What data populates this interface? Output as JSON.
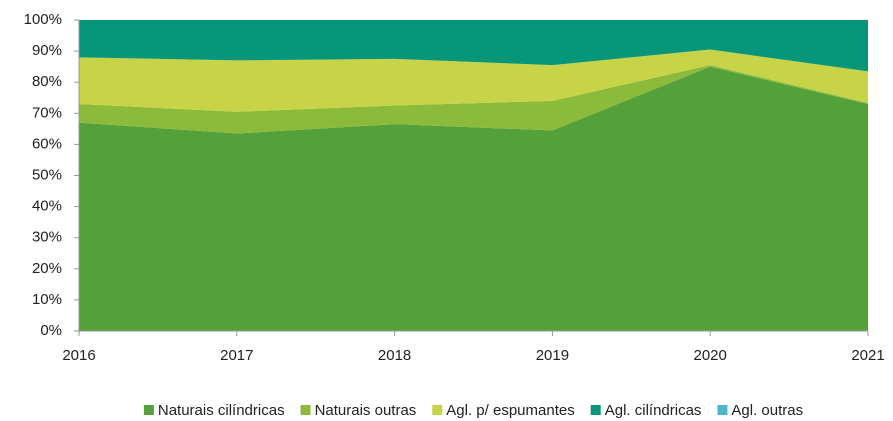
{
  "chart_data": {
    "type": "stacked_area",
    "categories": [
      "2016",
      "2017",
      "2018",
      "2019",
      "2020",
      "2021"
    ],
    "series": [
      {
        "name": "Naturais cilíndricas",
        "color": "#54a03b",
        "values": [
          67,
          63.5,
          66.5,
          64.5,
          85,
          73
        ]
      },
      {
        "name": "Naturais outras",
        "color": "#8cbb3c",
        "values": [
          6,
          7,
          6,
          9.5,
          0.5,
          0.3
        ]
      },
      {
        "name": "Agl. p/ espumantes",
        "color": "#c8d448",
        "values": [
          15,
          16.5,
          15,
          11.5,
          5,
          10.2
        ]
      },
      {
        "name": "Agl. cilíndricas",
        "color": "#07967a",
        "values": [
          12,
          13,
          12.5,
          14.5,
          9.5,
          16.5
        ]
      },
      {
        "name": "Agl. outras",
        "color": "#4bb8c8",
        "values": [
          0,
          0,
          0,
          0,
          0,
          0
        ]
      }
    ],
    "ylim": [
      0,
      100
    ],
    "yticks": [
      {
        "value": 0,
        "label": "0%"
      },
      {
        "value": 10,
        "label": "10%"
      },
      {
        "value": 20,
        "label": "20%"
      },
      {
        "value": 30,
        "label": "30%"
      },
      {
        "value": 40,
        "label": "40%"
      },
      {
        "value": 50,
        "label": "50%"
      },
      {
        "value": 60,
        "label": "60%"
      },
      {
        "value": 70,
        "label": "70%"
      },
      {
        "value": 80,
        "label": "80%"
      },
      {
        "value": 90,
        "label": "90%"
      },
      {
        "value": 100,
        "label": "100%"
      }
    ],
    "legend": "bottom"
  }
}
